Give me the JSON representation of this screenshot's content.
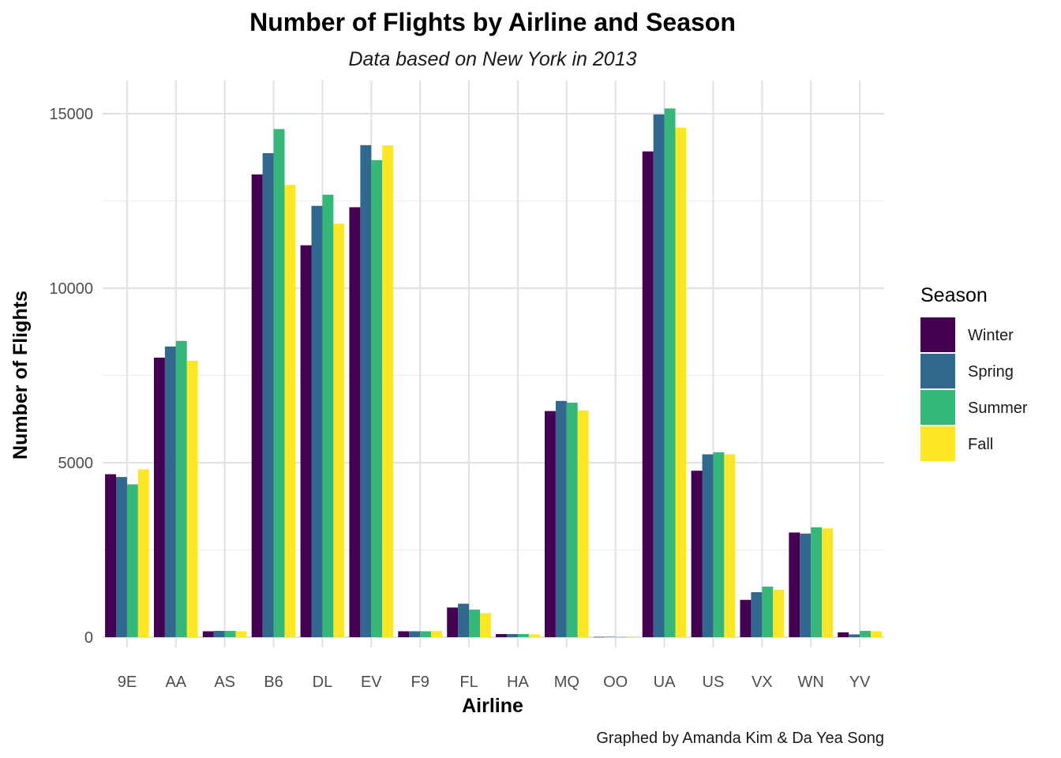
{
  "chart_data": {
    "type": "bar",
    "title": "Number of Flights by Airline and Season",
    "subtitle": "Data based on New York in 2013",
    "xlabel": "Airline",
    "ylabel": "Number of Flights",
    "caption": "Graphed by Amanda Kim & Da Yea Song",
    "ylim": [
      0,
      16000
    ],
    "yticks": [
      0,
      5000,
      10000,
      15000
    ],
    "grid": true,
    "legend": {
      "title": "Season",
      "position": "right"
    },
    "categories": [
      "9E",
      "AA",
      "AS",
      "B6",
      "DL",
      "EV",
      "F9",
      "FL",
      "HA",
      "MQ",
      "OO",
      "UA",
      "US",
      "VX",
      "WN",
      "YV"
    ],
    "series": [
      {
        "name": "Winter",
        "color": "#440154",
        "values": [
          4670,
          8010,
          170,
          13260,
          11230,
          12320,
          170,
          850,
          90,
          6480,
          6,
          13920,
          4770,
          1070,
          3000,
          140
        ]
      },
      {
        "name": "Spring",
        "color": "#31688E",
        "values": [
          4590,
          8330,
          180,
          13870,
          12360,
          14100,
          170,
          960,
          90,
          6770,
          10,
          14980,
          5240,
          1290,
          2970,
          80
        ]
      },
      {
        "name": "Summer",
        "color": "#35B779",
        "values": [
          4380,
          8490,
          180,
          14560,
          12680,
          13670,
          170,
          790,
          90,
          6720,
          6,
          15150,
          5300,
          1450,
          3150,
          180
        ]
      },
      {
        "name": "Fall",
        "color": "#FDE725",
        "values": [
          4810,
          7920,
          170,
          12960,
          11850,
          14090,
          180,
          690,
          80,
          6500,
          10,
          14600,
          5240,
          1360,
          3120,
          170
        ]
      }
    ]
  }
}
